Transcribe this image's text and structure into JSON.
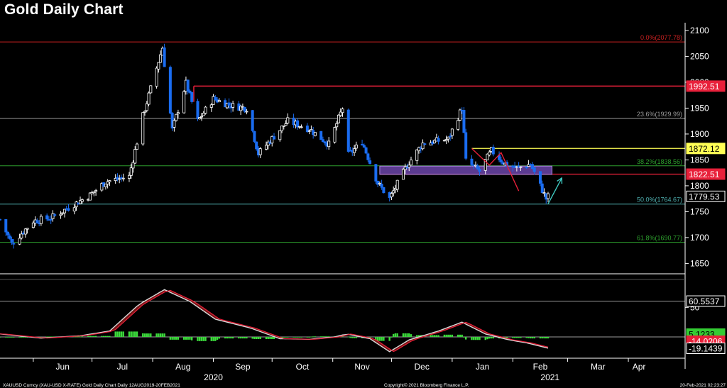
{
  "title": "Gold Daily Chart",
  "footer": {
    "left": "XAUUSD Curncy (XAU-USD X-RATE) Gold Daily Chart  Daily 12AUG2019-20FEB2021",
    "center": "Copyright© 2021 Bloomberg Finance L.P.",
    "right": "20-Feb-2021 02:23:27"
  },
  "colors": {
    "up": "#ffffff",
    "down": "#1a6cf0",
    "grid": "#3a3a3a"
  },
  "chart_data": [
    {
      "type": "candlestick",
      "title": "Gold Daily Chart",
      "x_ticks": [
        "Jun",
        "Jul",
        "Aug",
        "Sep",
        "Oct",
        "Nov",
        "Dec",
        "Jan",
        "Feb",
        "Mar",
        "Apr"
      ],
      "year_labels": [
        "2020",
        "2021"
      ],
      "y_ticks": [
        2100,
        2050,
        2000,
        1950,
        1900,
        1850,
        1800,
        1750,
        1700,
        1650
      ],
      "ylim": [
        1630,
        2115
      ],
      "fib_levels": [
        {
          "label": "0.0%(2077.78)",
          "value": 2077.78,
          "color": "#cc2222"
        },
        {
          "label": "23.6%(1929.99)",
          "value": 1929.99,
          "color": "#9a9a9a"
        },
        {
          "label": "38.2%(1838.56)",
          "value": 1838.56,
          "color": "#2ea02e"
        },
        {
          "label": "50.0%(1764.67)",
          "value": 1764.67,
          "color": "#4fb0b0"
        },
        {
          "label": "61.8%(1690.77)",
          "value": 1690.77,
          "color": "#2ea02e"
        }
      ],
      "price_tags": [
        {
          "label": "1992.51",
          "value": 1992.51,
          "bg": "#e8203a",
          "fg": "#ffffff"
        },
        {
          "label": "1872.12",
          "value": 1872.12,
          "bg": "#ffff55",
          "fg": "#000000"
        },
        {
          "label": "1822.51",
          "value": 1822.51,
          "bg": "#e8203a",
          "fg": "#ffffff"
        },
        {
          "label": "1779.53",
          "value": 1779.53,
          "bg": "#000000",
          "fg": "#ffffff"
        }
      ],
      "anchors": [
        [
          "2020-05-15",
          1735
        ],
        [
          "2020-05-21",
          1688
        ],
        [
          "2020-06-01",
          1732
        ],
        [
          "2020-06-10",
          1738
        ],
        [
          "2020-06-20",
          1760
        ],
        [
          "2020-06-30",
          1782
        ],
        [
          "2020-07-08",
          1808
        ],
        [
          "2020-07-20",
          1818
        ],
        [
          "2020-07-27",
          1935
        ],
        [
          "2020-08-06",
          2067
        ],
        [
          "2020-08-11",
          1908
        ],
        [
          "2020-08-18",
          1998
        ],
        [
          "2020-08-24",
          1925
        ],
        [
          "2020-09-01",
          1968
        ],
        [
          "2020-09-10",
          1955
        ],
        [
          "2020-09-18",
          1950
        ],
        [
          "2020-09-24",
          1862
        ],
        [
          "2020-10-09",
          1925
        ],
        [
          "2020-10-20",
          1910
        ],
        [
          "2020-10-30",
          1880
        ],
        [
          "2020-11-06",
          1950
        ],
        [
          "2020-11-09",
          1860
        ],
        [
          "2020-11-16",
          1885
        ],
        [
          "2020-11-24",
          1805
        ],
        [
          "2020-11-30",
          1775
        ],
        [
          "2020-12-09",
          1840
        ],
        [
          "2020-12-17",
          1882
        ],
        [
          "2020-12-30",
          1890
        ],
        [
          "2021-01-06",
          1950
        ],
        [
          "2021-01-08",
          1848
        ],
        [
          "2021-01-15",
          1828
        ],
        [
          "2021-01-21",
          1868
        ],
        [
          "2021-01-28",
          1842
        ],
        [
          "2021-02-03",
          1834
        ],
        [
          "2021-02-10",
          1842
        ],
        [
          "2021-02-18",
          1775
        ],
        [
          "2021-02-19",
          1779.53
        ]
      ],
      "annotations": [
        {
          "type": "zone",
          "from": "2020-11-25",
          "to": "2021-02-21",
          "low": 1822,
          "high": 1838,
          "color": "#7a4fc0"
        },
        {
          "type": "arrow",
          "points": [
            [
              "2021-02-19",
              1765
            ],
            [
              "2021-02-26",
              1815
            ]
          ],
          "color": "#3fc8c0"
        }
      ]
    },
    {
      "type": "oscillator",
      "y_ticks": [
        50
      ],
      "ylim": [
        -30,
        90
      ],
      "value_tags": [
        {
          "label": "60.5537",
          "value": 60.5537,
          "bg": "#000000",
          "fg": "#ffffff"
        },
        {
          "label": "5.1233",
          "value": 5.1233,
          "bg": "#33cc33",
          "fg": "#000000"
        },
        {
          "label": "-14.0206",
          "value": -14.0206,
          "bg": "#e8203a",
          "fg": "#ffffff"
        },
        {
          "label": "-19.1439",
          "value": -19.1439,
          "bg": "#000000",
          "fg": "#ffffff"
        }
      ],
      "series_anchors": [
        [
          "2020-05-15",
          5
        ],
        [
          "2020-06-05",
          -2
        ],
        [
          "2020-06-25",
          2
        ],
        [
          "2020-07-10",
          10
        ],
        [
          "2020-07-25",
          55
        ],
        [
          "2020-08-07",
          80
        ],
        [
          "2020-08-20",
          60
        ],
        [
          "2020-09-02",
          30
        ],
        [
          "2020-09-20",
          15
        ],
        [
          "2020-10-05",
          -3
        ],
        [
          "2020-10-20",
          -4
        ],
        [
          "2020-11-02",
          0
        ],
        [
          "2020-11-08",
          5
        ],
        [
          "2020-11-20",
          -3
        ],
        [
          "2020-11-30",
          -25
        ],
        [
          "2020-12-10",
          -5
        ],
        [
          "2020-12-25",
          10
        ],
        [
          "2021-01-06",
          25
        ],
        [
          "2021-01-18",
          5
        ],
        [
          "2021-01-30",
          -5
        ],
        [
          "2021-02-08",
          -10
        ],
        [
          "2021-02-19",
          -19
        ]
      ]
    }
  ]
}
